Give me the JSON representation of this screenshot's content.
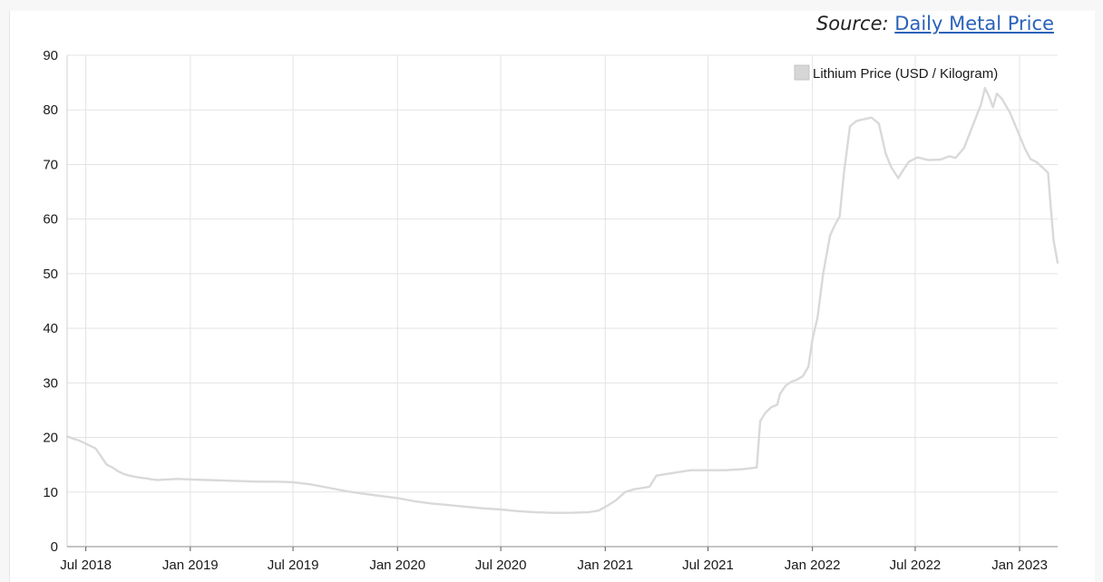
{
  "source": {
    "prefix": "Source:",
    "link_text": "Daily Metal Price"
  },
  "chart_data": {
    "type": "line",
    "title": "",
    "xlabel": "",
    "ylabel": "",
    "ylim": [
      0,
      90
    ],
    "y_ticks": [
      0,
      10,
      20,
      30,
      40,
      50,
      60,
      70,
      80,
      90
    ],
    "x_ticks": [
      {
        "label": "Jul 2018",
        "date": "2018-07-01"
      },
      {
        "label": "Jan 2019",
        "date": "2019-01-01"
      },
      {
        "label": "Jul 2019",
        "date": "2019-07-01"
      },
      {
        "label": "Jan 2020",
        "date": "2020-01-01"
      },
      {
        "label": "Jul 2020",
        "date": "2020-07-01"
      },
      {
        "label": "Jan 2021",
        "date": "2021-01-01"
      },
      {
        "label": "Jul 2021",
        "date": "2021-07-01"
      },
      {
        "label": "Jan 2022",
        "date": "2022-01-01"
      },
      {
        "label": "Jul 2022",
        "date": "2022-07-01"
      },
      {
        "label": "Jan 2023",
        "date": "2023-01-01"
      }
    ],
    "xlim": [
      "2018-05-29",
      "2023-03-09"
    ],
    "grid": true,
    "legend_position": "top-right",
    "series": [
      {
        "name": "Lithium Price (USD / Kilogram)",
        "color": "#d9d9d9",
        "points": [
          [
            "2018-05-29",
            20.2
          ],
          [
            "2018-06-08",
            19.8
          ],
          [
            "2018-06-18",
            19.5
          ],
          [
            "2018-06-28",
            19.0
          ],
          [
            "2018-07-08",
            18.5
          ],
          [
            "2018-07-18",
            18.0
          ],
          [
            "2018-07-28",
            16.5
          ],
          [
            "2018-08-07",
            15.0
          ],
          [
            "2018-08-17",
            14.5
          ],
          [
            "2018-08-27",
            13.8
          ],
          [
            "2018-09-06",
            13.3
          ],
          [
            "2018-09-16",
            13.0
          ],
          [
            "2018-09-26",
            12.8
          ],
          [
            "2018-10-06",
            12.6
          ],
          [
            "2018-10-16",
            12.5
          ],
          [
            "2018-10-26",
            12.3
          ],
          [
            "2018-11-05",
            12.2
          ],
          [
            "2018-11-20",
            12.3
          ],
          [
            "2018-12-10",
            12.4
          ],
          [
            "2019-01-01",
            12.3
          ],
          [
            "2019-02-01",
            12.2
          ],
          [
            "2019-03-01",
            12.1
          ],
          [
            "2019-04-01",
            12.0
          ],
          [
            "2019-05-01",
            11.9
          ],
          [
            "2019-06-01",
            11.9
          ],
          [
            "2019-07-01",
            11.8
          ],
          [
            "2019-08-01",
            11.4
          ],
          [
            "2019-09-01",
            10.8
          ],
          [
            "2019-10-01",
            10.2
          ],
          [
            "2019-11-01",
            9.7
          ],
          [
            "2019-12-01",
            9.3
          ],
          [
            "2020-01-01",
            8.9
          ],
          [
            "2020-02-01",
            8.3
          ],
          [
            "2020-03-01",
            7.9
          ],
          [
            "2020-04-01",
            7.6
          ],
          [
            "2020-05-01",
            7.3
          ],
          [
            "2020-06-01",
            7.0
          ],
          [
            "2020-07-01",
            6.8
          ],
          [
            "2020-08-01",
            6.5
          ],
          [
            "2020-09-01",
            6.3
          ],
          [
            "2020-10-01",
            6.2
          ],
          [
            "2020-11-01",
            6.2
          ],
          [
            "2020-12-01",
            6.3
          ],
          [
            "2020-12-20",
            6.6
          ],
          [
            "2021-01-05",
            7.5
          ],
          [
            "2021-01-20",
            8.5
          ],
          [
            "2021-02-05",
            10.0
          ],
          [
            "2021-02-20",
            10.5
          ],
          [
            "2021-03-10",
            10.8
          ],
          [
            "2021-03-20",
            11.0
          ],
          [
            "2021-04-01",
            13.0
          ],
          [
            "2021-05-01",
            13.5
          ],
          [
            "2021-06-01",
            14.0
          ],
          [
            "2021-07-01",
            14.0
          ],
          [
            "2021-08-01",
            14.0
          ],
          [
            "2021-09-01",
            14.2
          ],
          [
            "2021-09-25",
            14.5
          ],
          [
            "2021-10-01",
            23.0
          ],
          [
            "2021-10-10",
            24.5
          ],
          [
            "2021-10-20",
            25.5
          ],
          [
            "2021-10-31",
            26.0
          ],
          [
            "2021-11-05",
            28.0
          ],
          [
            "2021-11-15",
            29.5
          ],
          [
            "2021-11-25",
            30.2
          ],
          [
            "2021-12-05",
            30.6
          ],
          [
            "2021-12-15",
            31.2
          ],
          [
            "2021-12-25",
            33.0
          ],
          [
            "2022-01-01",
            38.0
          ],
          [
            "2022-01-10",
            42.0
          ],
          [
            "2022-01-20",
            50.0
          ],
          [
            "2022-02-01",
            57.0
          ],
          [
            "2022-02-10",
            59.0
          ],
          [
            "2022-02-18",
            60.5
          ],
          [
            "2022-02-25",
            68.0
          ],
          [
            "2022-03-08",
            77.0
          ],
          [
            "2022-03-20",
            78.0
          ],
          [
            "2022-04-15",
            78.6
          ],
          [
            "2022-04-28",
            77.5
          ],
          [
            "2022-05-10",
            72.0
          ],
          [
            "2022-05-20",
            69.5
          ],
          [
            "2022-06-01",
            67.5
          ],
          [
            "2022-06-10",
            69.0
          ],
          [
            "2022-06-20",
            70.5
          ],
          [
            "2022-07-05",
            71.3
          ],
          [
            "2022-07-25",
            70.8
          ],
          [
            "2022-08-15",
            70.9
          ],
          [
            "2022-08-30",
            71.5
          ],
          [
            "2022-09-10",
            71.2
          ],
          [
            "2022-09-25",
            73.0
          ],
          [
            "2022-10-10",
            77.0
          ],
          [
            "2022-10-25",
            81.0
          ],
          [
            "2022-11-01",
            84.0
          ],
          [
            "2022-11-08",
            82.5
          ],
          [
            "2022-11-15",
            80.5
          ],
          [
            "2022-11-22",
            83.0
          ],
          [
            "2022-12-01",
            82.0
          ],
          [
            "2022-12-15",
            79.5
          ],
          [
            "2022-12-25",
            77.0
          ],
          [
            "2023-01-10",
            73.0
          ],
          [
            "2023-01-20",
            71.0
          ],
          [
            "2023-01-30",
            70.5
          ],
          [
            "2023-02-10",
            69.5
          ],
          [
            "2023-02-20",
            68.5
          ],
          [
            "2023-02-25",
            62.0
          ],
          [
            "2023-03-02",
            56.0
          ],
          [
            "2023-03-09",
            52.0
          ]
        ]
      }
    ]
  }
}
